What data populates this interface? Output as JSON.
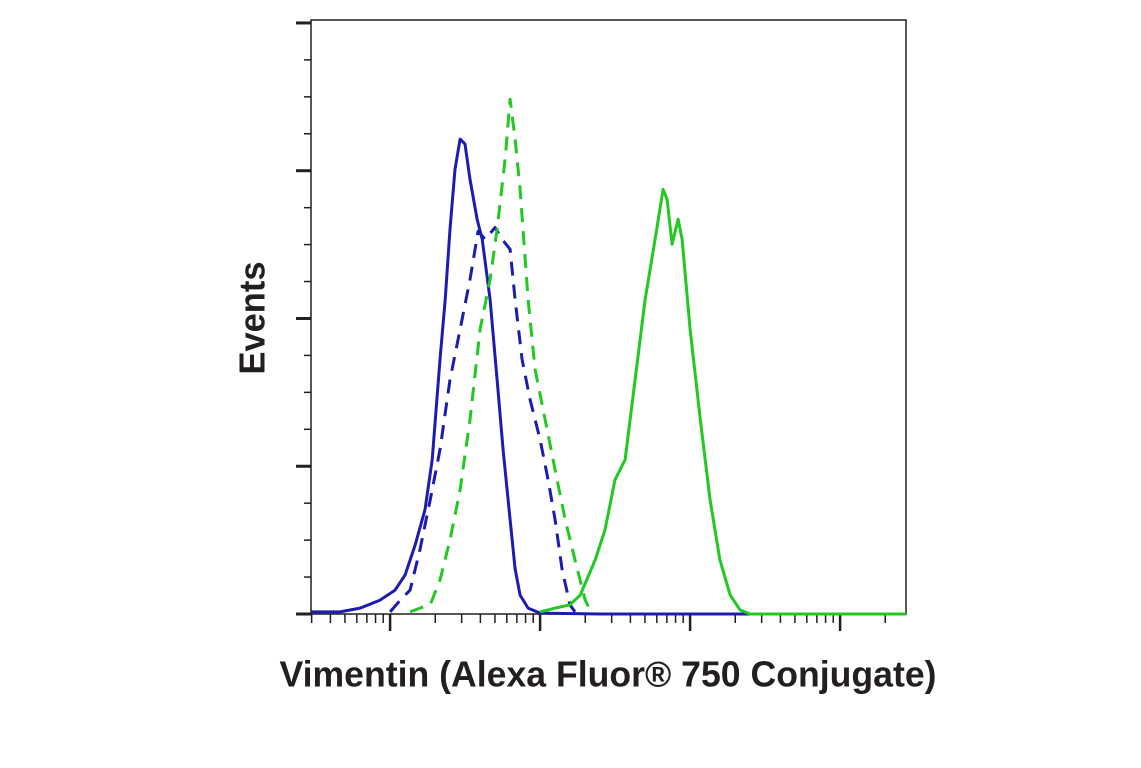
{
  "chart_data": {
    "type": "line",
    "x_label": "Vimentin (Alexa Fluor® 750 Conjugate)",
    "y_label": "Events",
    "x_log_scale": true,
    "xlim": [
      29.7,
      275000
    ],
    "xticks": [
      100,
      1000,
      10000,
      100000
    ],
    "xminorticks": [
      30,
      40,
      50,
      60,
      70,
      80,
      90,
      200,
      300,
      400,
      500,
      600,
      700,
      800,
      900,
      2000,
      3000,
      4000,
      5000,
      6000,
      7000,
      8000,
      9000,
      20000,
      30000,
      40000,
      50000,
      60000,
      70000,
      80000,
      90000,
      200000
    ],
    "ylim": [
      0,
      201
    ],
    "yticks": [
      0,
      50,
      100,
      150,
      200
    ],
    "yminorticks": [
      12.5,
      25,
      37.5,
      62.5,
      75,
      87.5,
      112.5,
      125,
      137.5,
      162.5,
      175,
      187.5
    ],
    "series": [
      {
        "color": "#1c1cb0",
        "dashed": false,
        "x": [
          29.7,
          46.4,
          63.1,
          85.8,
          108,
          126,
          147,
          171,
          191,
          215,
          233,
          251,
          271,
          293,
          316,
          341,
          380,
          411,
          464,
          517,
          567,
          631,
          681,
          736,
          832,
          1000,
          2510,
          275000
        ],
        "values": [
          0.7,
          0.7,
          2.0,
          4.7,
          8.1,
          13.2,
          23.4,
          35.3,
          52.2,
          86.1,
          106.4,
          130.2,
          150.5,
          160.7,
          159.0,
          147.1,
          133.6,
          126.8,
          106.4,
          79.3,
          55.6,
          31.9,
          15.3,
          6.4,
          2.0,
          0.3,
          0,
          0
        ]
      },
      {
        "color": "#1c1cb0",
        "dashed": true,
        "x": [
          100,
          117,
          136,
          158,
          185,
          215,
          251,
          293,
          341,
          386,
          430,
          501,
          558,
          631,
          681,
          759,
          858,
          1000,
          1130,
          1260,
          1400,
          1580,
          1710
        ],
        "values": [
          0.7,
          4.7,
          8.1,
          21.7,
          38.6,
          55.6,
          79.3,
          96.3,
          113.2,
          129.5,
          126.8,
          130.8,
          126.8,
          123.4,
          106.4,
          86.1,
          72.5,
          59.0,
          45.4,
          31.9,
          15.3,
          3.1,
          0.7
        ]
      },
      {
        "color": "#22c922",
        "dashed": true,
        "x": [
          136,
          158,
          185,
          215,
          251,
          293,
          341,
          398,
          464,
          517,
          584,
          631,
          681,
          736,
          832,
          926,
          1080,
          1260,
          1470,
          1710,
          2000,
          2150
        ],
        "values": [
          0.7,
          2.0,
          3.1,
          11.5,
          25.1,
          42.0,
          65.8,
          96.3,
          113.2,
          130.2,
          153.9,
          174.2,
          160.7,
          143.7,
          106.4,
          82.7,
          65.8,
          48.8,
          31.9,
          18.3,
          4.7,
          1.4
        ]
      },
      {
        "color": "#22c922",
        "dashed": false,
        "x": [
          1000,
          1260,
          1580,
          1850,
          2330,
          2710,
          3160,
          3690,
          4300,
          5010,
          5840,
          6610,
          7030,
          7590,
          8320,
          8850,
          10000,
          11700,
          13600,
          15800,
          18500,
          21500,
          25100,
          275000
        ],
        "values": [
          0.7,
          2.0,
          3.1,
          6.4,
          18.3,
          28.5,
          45.4,
          52.2,
          79.3,
          106.4,
          126.8,
          143.7,
          140.3,
          125.1,
          133.6,
          126.8,
          96.3,
          65.8,
          38.6,
          18.3,
          6.4,
          1.4,
          0,
          0
        ]
      }
    ]
  }
}
